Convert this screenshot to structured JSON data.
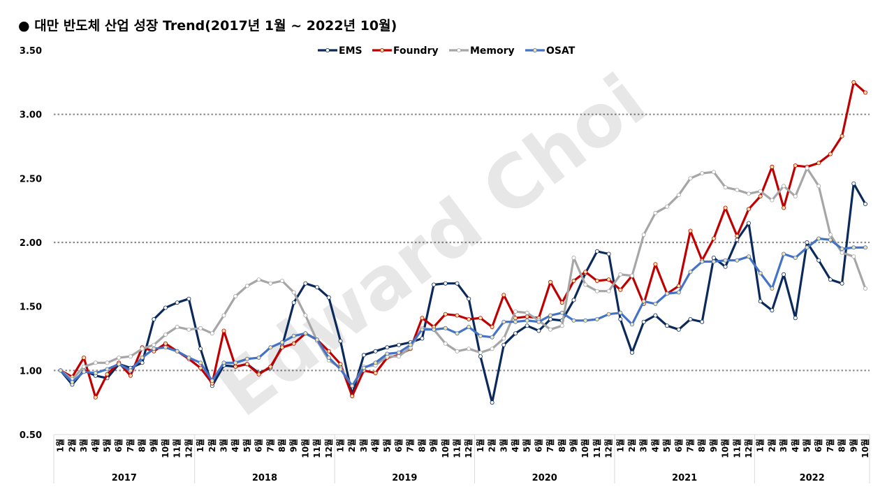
{
  "title": "● 대만 반도체 산업 성장 Trend(2017년 1월 ~ 2022년 10월)",
  "watermark": "Edward Choi",
  "chart_data": {
    "type": "line",
    "title": "● 대만 반도체 산업 성장 Trend(2017년 1월 ~ 2022년 10월)",
    "xlabel": "",
    "ylabel": "",
    "ylim": [
      0.5,
      3.5
    ],
    "yticks": [
      "0.50",
      "1.00",
      "1.50",
      "2.00",
      "2.50",
      "3.00",
      "3.50"
    ],
    "grid": "dotted lines at 1.00, 2.00, 3.00",
    "legend_position": "top",
    "month_labels": [
      "1월",
      "2월",
      "3월",
      "4월",
      "5월",
      "6월",
      "7월",
      "8월",
      "9월",
      "10월",
      "11월",
      "12월"
    ],
    "years": [
      "2017",
      "2018",
      "2019",
      "2020",
      "2021",
      "2022"
    ],
    "months_per_year": [
      12,
      12,
      12,
      12,
      12,
      10
    ],
    "series": [
      {
        "name": "EMS",
        "color": "#0b2a5b",
        "marker_fill": "#ffffff",
        "values": [
          1.0,
          0.89,
          1.0,
          0.96,
          0.94,
          1.05,
          1.02,
          1.06,
          1.4,
          1.49,
          1.53,
          1.56,
          1.17,
          0.88,
          1.04,
          1.03,
          1.05,
          0.98,
          1.02,
          1.19,
          1.53,
          1.68,
          1.65,
          1.57,
          1.23,
          0.81,
          1.12,
          1.15,
          1.18,
          1.2,
          1.22,
          1.25,
          1.67,
          1.68,
          1.68,
          1.56,
          1.11,
          0.75,
          1.2,
          1.29,
          1.35,
          1.31,
          1.4,
          1.39,
          1.55,
          1.76,
          1.93,
          1.91,
          1.4,
          1.14,
          1.38,
          1.43,
          1.35,
          1.32,
          1.4,
          1.38,
          1.88,
          1.81,
          2.02,
          2.15,
          1.54,
          1.47,
          1.75,
          1.41,
          2.0,
          1.86,
          1.71,
          1.68,
          2.46,
          2.3
        ]
      },
      {
        "name": "Foundry",
        "color": "#c00000",
        "marker_fill": "#f5e6a8",
        "values": [
          1.0,
          0.95,
          1.1,
          0.79,
          0.97,
          1.06,
          0.96,
          1.18,
          1.15,
          1.21,
          1.15,
          1.09,
          1.02,
          0.9,
          1.31,
          1.03,
          1.05,
          0.97,
          1.03,
          1.18,
          1.21,
          1.29,
          1.24,
          1.15,
          1.05,
          0.8,
          1.0,
          0.98,
          1.1,
          1.12,
          1.17,
          1.41,
          1.34,
          1.44,
          1.43,
          1.4,
          1.41,
          1.34,
          1.59,
          1.41,
          1.42,
          1.41,
          1.69,
          1.53,
          1.7,
          1.77,
          1.7,
          1.71,
          1.63,
          1.74,
          1.52,
          1.83,
          1.6,
          1.66,
          2.09,
          1.86,
          2.03,
          2.27,
          2.05,
          2.26,
          2.36,
          2.59,
          2.27,
          2.6,
          2.59,
          2.62,
          2.69,
          2.83,
          3.25,
          3.17
        ]
      },
      {
        "name": "Memory",
        "color": "#a6a6a6",
        "marker_fill": "#ffffff",
        "values": [
          1.0,
          0.93,
          1.03,
          1.06,
          1.06,
          1.1,
          1.11,
          1.17,
          1.2,
          1.28,
          1.34,
          1.32,
          1.33,
          1.29,
          1.43,
          1.58,
          1.66,
          1.71,
          1.68,
          1.7,
          1.61,
          1.43,
          1.23,
          1.08,
          1.02,
          0.88,
          1.03,
          1.04,
          1.11,
          1.11,
          1.18,
          1.33,
          1.32,
          1.21,
          1.15,
          1.17,
          1.14,
          1.17,
          1.25,
          1.46,
          1.45,
          1.39,
          1.32,
          1.35,
          1.88,
          1.67,
          1.62,
          1.62,
          1.75,
          1.74,
          2.06,
          2.23,
          2.28,
          2.37,
          2.5,
          2.54,
          2.55,
          2.43,
          2.41,
          2.38,
          2.4,
          2.33,
          2.44,
          2.36,
          2.58,
          2.44,
          2.06,
          1.92,
          1.89,
          1.64
        ]
      },
      {
        "name": "OSAT",
        "color": "#4472c4",
        "marker_fill": "#f5e6a8",
        "values": [
          1.0,
          0.91,
          0.99,
          0.98,
          1.01,
          1.05,
          1.0,
          1.1,
          1.17,
          1.18,
          1.15,
          1.1,
          1.06,
          0.92,
          1.06,
          1.06,
          1.09,
          1.1,
          1.18,
          1.22,
          1.27,
          1.29,
          1.24,
          1.1,
          1.01,
          0.88,
          1.02,
          1.06,
          1.13,
          1.14,
          1.2,
          1.32,
          1.32,
          1.33,
          1.29,
          1.34,
          1.27,
          1.26,
          1.38,
          1.38,
          1.39,
          1.38,
          1.43,
          1.45,
          1.39,
          1.39,
          1.4,
          1.44,
          1.45,
          1.36,
          1.54,
          1.52,
          1.6,
          1.61,
          1.77,
          1.85,
          1.85,
          1.86,
          1.86,
          1.89,
          1.76,
          1.64,
          1.91,
          1.88,
          1.96,
          2.03,
          2.02,
          1.95,
          1.96,
          1.96
        ]
      }
    ]
  }
}
